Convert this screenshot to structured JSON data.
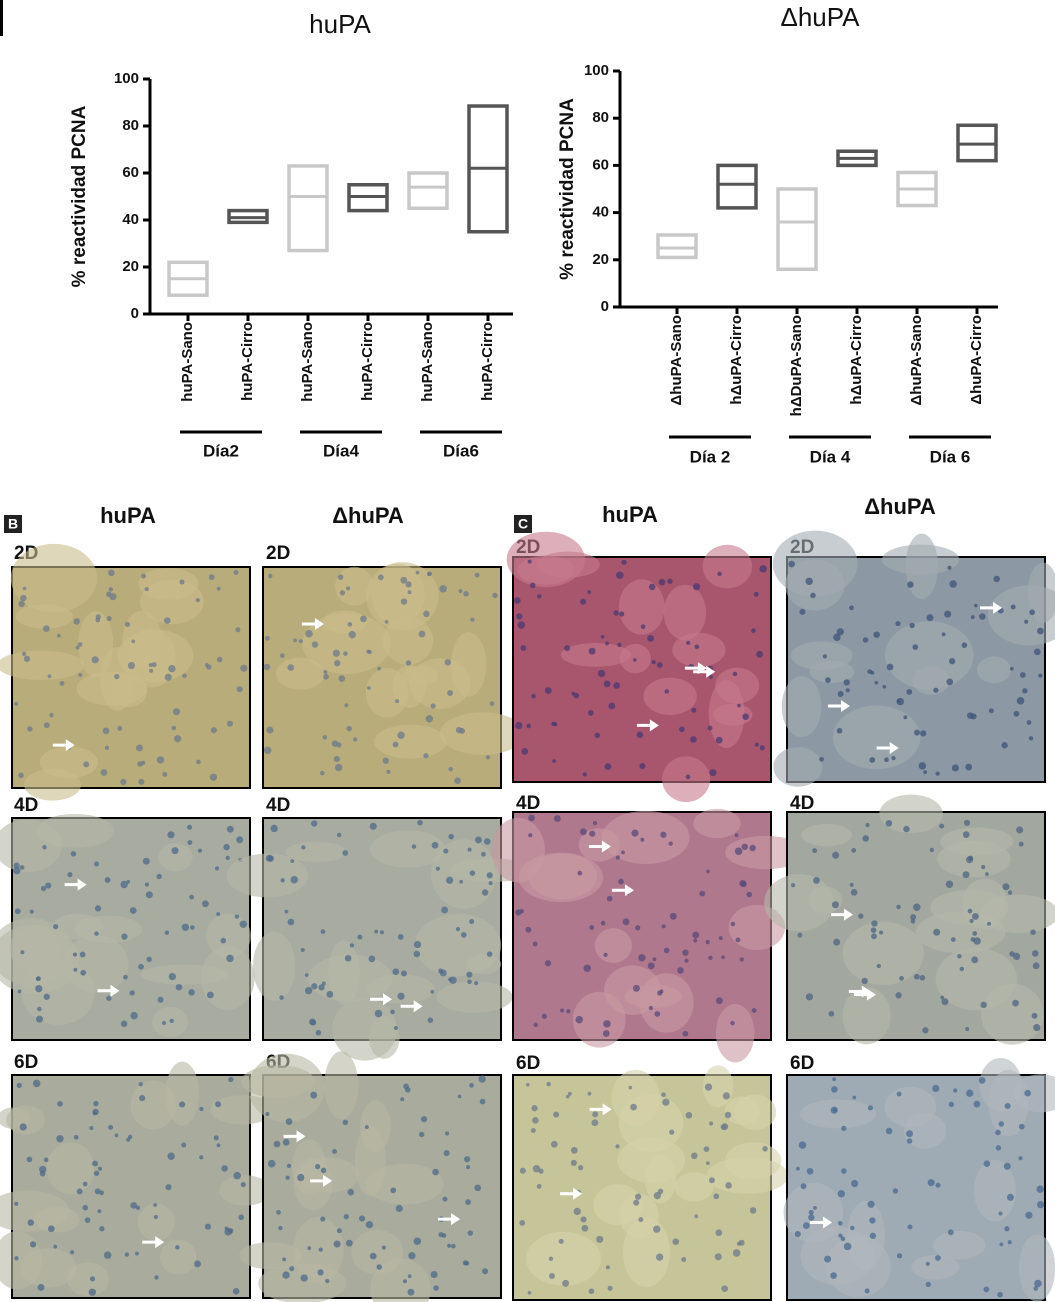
{
  "chart_data": [
    {
      "type": "floating_bar",
      "title": "huPA",
      "y_label": "% reactividad PCNA",
      "categories": [
        "huPA-Sano",
        "huPA-Cirro",
        "huPA-Sano",
        "huPA-Cirro",
        "huPA-Sano",
        "huPA-Cirro"
      ],
      "groups": [
        "Día2",
        "Día4",
        "Día6"
      ],
      "low": [
        8,
        39,
        27,
        44,
        45,
        35
      ],
      "mid": [
        15,
        41,
        50,
        50,
        54,
        62
      ],
      "high": [
        22,
        44,
        63,
        55,
        60,
        88.5
      ],
      "colors": [
        "#c8c8c8",
        "#555555",
        "#c8c8c8",
        "#555555",
        "#c8c8c8",
        "#555555"
      ],
      "ylim": [
        0,
        100
      ],
      "yticks": [
        0,
        20,
        40,
        60,
        80,
        100
      ]
    },
    {
      "type": "floating_bar",
      "title": "ΔhuPA",
      "y_label": "% reactividad PCNA",
      "categories": [
        "ΔhuPA-Sano",
        "hΔuPA-Cirro",
        "hΔDuPA-Sano",
        "hΔuPA-Cirro",
        "ΔhuPA-Sano",
        "ΔhuPA-Cirro"
      ],
      "groups": [
        "Día 2",
        "Día 4",
        "Día 6"
      ],
      "low": [
        21,
        42,
        16,
        60,
        43,
        62
      ],
      "mid": [
        25,
        52,
        36,
        63,
        50,
        69
      ],
      "high": [
        30.5,
        60,
        50,
        66,
        57,
        77
      ],
      "colors": [
        "#c8c8c8",
        "#555555",
        "#c8c8c8",
        "#555555",
        "#c8c8c8",
        "#555555"
      ],
      "ylim": [
        0,
        100
      ],
      "yticks": [
        0,
        20,
        40,
        60,
        80,
        100
      ]
    }
  ],
  "panels": [
    {
      "letter": "B",
      "columns": [
        "huPA",
        "ΔhuPA"
      ],
      "rows": [
        [
          "2D",
          "2D"
        ],
        [
          "4D",
          "4D"
        ],
        [
          "6D",
          "6D"
        ]
      ]
    },
    {
      "letter": "C",
      "columns": [
        "huPA",
        "ΔhuPA"
      ],
      "rows": [
        [
          "2D",
          "2D"
        ],
        [
          "4D",
          "4D"
        ],
        [
          "6D",
          "6D"
        ]
      ]
    }
  ]
}
